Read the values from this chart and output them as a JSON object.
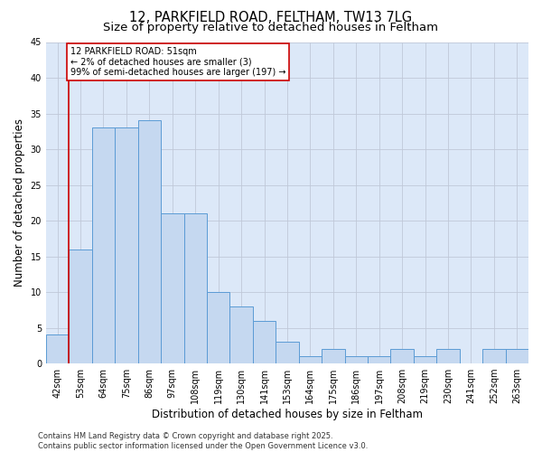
{
  "title_line1": "12, PARKFIELD ROAD, FELTHAM, TW13 7LG",
  "title_line2": "Size of property relative to detached houses in Feltham",
  "xlabel": "Distribution of detached houses by size in Feltham",
  "ylabel": "Number of detached properties",
  "categories": [
    "42sqm",
    "53sqm",
    "64sqm",
    "75sqm",
    "86sqm",
    "97sqm",
    "108sqm",
    "119sqm",
    "130sqm",
    "141sqm",
    "153sqm",
    "164sqm",
    "175sqm",
    "186sqm",
    "197sqm",
    "208sqm",
    "219sqm",
    "230sqm",
    "241sqm",
    "252sqm",
    "263sqm"
  ],
  "values": [
    4,
    16,
    33,
    33,
    34,
    21,
    21,
    10,
    8,
    6,
    3,
    1,
    2,
    1,
    1,
    2,
    1,
    2,
    0,
    2,
    2
  ],
  "bar_color": "#c5d8f0",
  "bar_edge_color": "#5b9bd5",
  "highlight_line_color": "#cc0000",
  "ylim": [
    0,
    45
  ],
  "yticks": [
    0,
    5,
    10,
    15,
    20,
    25,
    30,
    35,
    40,
    45
  ],
  "grid_color": "#c0c8d8",
  "bg_color": "#dce8f8",
  "annotation_text": "12 PARKFIELD ROAD: 51sqm\n← 2% of detached houses are smaller (3)\n99% of semi-detached houses are larger (197) →",
  "annotation_box_facecolor": "#ffffff",
  "annotation_box_edgecolor": "#cc0000",
  "footer_text": "Contains HM Land Registry data © Crown copyright and database right 2025.\nContains public sector information licensed under the Open Government Licence v3.0.",
  "fig_bg_color": "#ffffff",
  "title_fontsize": 10.5,
  "subtitle_fontsize": 9.5,
  "axis_label_fontsize": 8.5,
  "tick_fontsize": 7,
  "annotation_fontsize": 7,
  "footer_fontsize": 6
}
